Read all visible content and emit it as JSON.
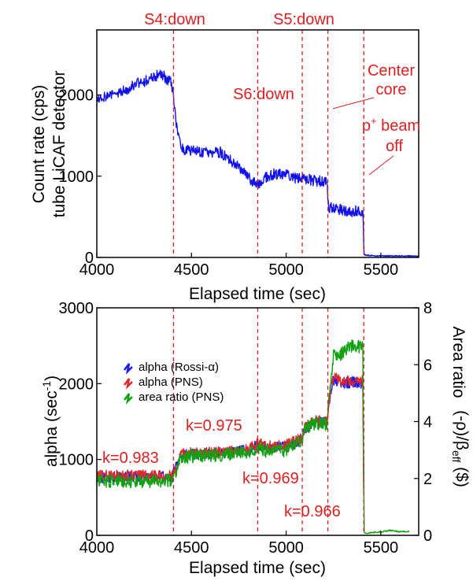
{
  "chart_data": [
    {
      "type": "line",
      "xlabel": "Elapsed time (sec)",
      "ylabel_lines": [
        "Count rate (cps)",
        "tube LiCAF detector"
      ],
      "xlim": [
        4000,
        5700
      ],
      "ylim": [
        0,
        2800
      ],
      "xticks": [
        4000,
        4500,
        5000,
        5500
      ],
      "xtick_labels": [
        "4000",
        "4500",
        "5000",
        "5500"
      ],
      "yticks": [
        0,
        1000,
        2000
      ],
      "ytick_labels": [
        "0",
        "1000",
        "2000"
      ],
      "grid": false,
      "colors": {
        "series": "#1010ee",
        "events": "#e02020"
      },
      "events": [
        4405,
        4850,
        5085,
        5220,
        5410
      ],
      "annotations": [
        {
          "text": "S4:down",
          "x": 4405
        },
        {
          "text": "S5:down",
          "x": 5085
        },
        {
          "text": "S6:down",
          "x": 4850
        },
        {
          "text": "Center",
          "x": 5410
        },
        {
          "text": "core",
          "x": 5410
        },
        {
          "text": "p",
          "sup": "+",
          "tail": " beam",
          "x": 5410
        },
        {
          "text": "off",
          "x": 5410
        }
      ],
      "series": [
        {
          "values": [
            [
              4000,
              1960
            ],
            [
              4050,
              1990
            ],
            [
              4100,
              2010
            ],
            [
              4150,
              2060
            ],
            [
              4200,
              2140
            ],
            [
              4250,
              2170
            ],
            [
              4300,
              2210
            ],
            [
              4340,
              2260
            ],
            [
              4370,
              2190
            ],
            [
              4395,
              2150
            ],
            [
              4420,
              1650
            ],
            [
              4440,
              1400
            ],
            [
              4460,
              1330
            ],
            [
              4500,
              1320
            ],
            [
              4550,
              1300
            ],
            [
              4600,
              1270
            ],
            [
              4650,
              1300
            ],
            [
              4700,
              1200
            ],
            [
              4750,
              1100
            ],
            [
              4800,
              980
            ],
            [
              4850,
              900
            ],
            [
              4880,
              980
            ],
            [
              4920,
              1010
            ],
            [
              4950,
              1030
            ],
            [
              5000,
              1010
            ],
            [
              5050,
              980
            ],
            [
              5100,
              960
            ],
            [
              5150,
              950
            ],
            [
              5200,
              930
            ],
            [
              5215,
              930
            ],
            [
              5225,
              620
            ],
            [
              5250,
              600
            ],
            [
              5300,
              580
            ],
            [
              5350,
              570
            ],
            [
              5405,
              560
            ],
            [
              5412,
              25
            ],
            [
              5450,
              15
            ],
            [
              5500,
              12
            ],
            [
              5600,
              12
            ],
            [
              5700,
              10
            ]
          ]
        }
      ]
    },
    {
      "type": "line",
      "xlabel": "Elapsed time (sec)",
      "ylabel": "alpha (sec-1)",
      "ylabel_text": "alpha (sec",
      "ylabel_sup": "-1",
      "ylabel_tail": ")",
      "ylabel_right_lines": [
        "Area ratio",
        "(-ρ)/βeff ($)"
      ],
      "ylabel_right_line2_text": "(-ρ)/β",
      "ylabel_right_line2_sub": "eff",
      "ylabel_right_line2_tail": " ($)",
      "xlim": [
        4000,
        5700
      ],
      "ylim": [
        0,
        3000
      ],
      "ylim_right": [
        0,
        8
      ],
      "xticks": [
        4000,
        4500,
        5000,
        5500
      ],
      "xtick_labels": [
        "4000",
        "4500",
        "5000",
        "5500"
      ],
      "yticks": [
        0,
        1000,
        2000,
        3000
      ],
      "ytick_labels": [
        "0",
        "1000",
        "2000",
        "3000"
      ],
      "yticks_right": [
        0,
        2,
        4,
        6,
        8
      ],
      "ytick_right_labels": [
        "0",
        "2",
        "4",
        "6",
        "8"
      ],
      "grid": false,
      "legend_placement": "top-left",
      "events": [
        4405,
        4850,
        5085,
        5220,
        5410
      ],
      "annotations": [
        {
          "text": "k=0.983",
          "x": 4000
        },
        {
          "text": "k=0.975",
          "x": 4500
        },
        {
          "text": "k=0.969",
          "x": 4850
        },
        {
          "text": "k=0.966",
          "x": 5085
        }
      ],
      "series": [
        {
          "name": "alpha (Rossi-α)",
          "color": "#1a1aee",
          "values": [
            [
              4000,
              760
            ],
            [
              4100,
              770
            ],
            [
              4200,
              775
            ],
            [
              4300,
              770
            ],
            [
              4395,
              770
            ],
            [
              4420,
              900
            ],
            [
              4445,
              1060
            ],
            [
              4500,
              1070
            ],
            [
              4600,
              1080
            ],
            [
              4700,
              1090
            ],
            [
              4800,
              1120
            ],
            [
              4850,
              1200
            ],
            [
              4900,
              1150
            ],
            [
              5000,
              1170
            ],
            [
              5080,
              1260
            ],
            [
              5100,
              1410
            ],
            [
              5150,
              1500
            ],
            [
              5215,
              1480
            ],
            [
              5235,
              1900
            ],
            [
              5250,
              2050
            ],
            [
              5300,
              2000
            ],
            [
              5350,
              2020
            ],
            [
              5405,
              2010
            ],
            [
              5412,
              0
            ]
          ]
        },
        {
          "name": "alpha (PNS)",
          "color": "#e02828",
          "values": [
            [
              4000,
              780
            ],
            [
              4100,
              790
            ],
            [
              4200,
              790
            ],
            [
              4300,
              785
            ],
            [
              4395,
              790
            ],
            [
              4420,
              920
            ],
            [
              4445,
              1080
            ],
            [
              4500,
              1085
            ],
            [
              4600,
              1100
            ],
            [
              4700,
              1100
            ],
            [
              4800,
              1140
            ],
            [
              4850,
              1210
            ],
            [
              4900,
              1170
            ],
            [
              5000,
              1190
            ],
            [
              5080,
              1280
            ],
            [
              5100,
              1420
            ],
            [
              5150,
              1510
            ],
            [
              5215,
              1490
            ],
            [
              5235,
              1920
            ],
            [
              5250,
              2080
            ],
            [
              5300,
              2030
            ],
            [
              5350,
              2050
            ],
            [
              5405,
              2040
            ],
            [
              5412,
              0
            ]
          ]
        },
        {
          "name": "area ratio (PNS)",
          "color": "#10a010",
          "right_axis": true,
          "values": [
            [
              4000,
              1.9
            ],
            [
              4100,
              1.92
            ],
            [
              4200,
              1.9
            ],
            [
              4300,
              1.9
            ],
            [
              4395,
              1.92
            ],
            [
              4420,
              2.3
            ],
            [
              4445,
              2.75
            ],
            [
              4500,
              2.78
            ],
            [
              4600,
              2.82
            ],
            [
              4700,
              2.85
            ],
            [
              4800,
              2.95
            ],
            [
              4850,
              3.1
            ],
            [
              4900,
              2.95
            ],
            [
              5000,
              3.0
            ],
            [
              5080,
              3.3
            ],
            [
              5100,
              3.75
            ],
            [
              5150,
              3.95
            ],
            [
              5215,
              3.9
            ],
            [
              5235,
              5.3
            ],
            [
              5250,
              6.3
            ],
            [
              5300,
              6.4
            ],
            [
              5350,
              6.7
            ],
            [
              5405,
              6.6
            ],
            [
              5412,
              0.05
            ],
            [
              5500,
              0.1
            ],
            [
              5550,
              0.15
            ],
            [
              5600,
              0.1
            ],
            [
              5650,
              0.12
            ]
          ]
        }
      ]
    }
  ]
}
